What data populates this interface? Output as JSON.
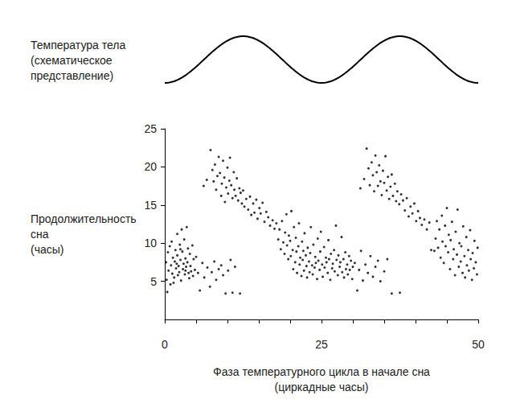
{
  "chart_data": {
    "type": "scatter",
    "annotation": "Температура тела\n(схематическое\nпредставление)",
    "x_label": "Фаза температурного цикла в начале сна\n(циркадные часы)",
    "y_label": "Продолжительность\nсна\n(часы)",
    "xlim": [
      0,
      50
    ],
    "xticks": [
      0,
      25,
      50
    ],
    "ylim": [
      0,
      25
    ],
    "yticks": [
      5,
      10,
      15,
      20,
      25
    ],
    "grid": false,
    "color": "#000000",
    "marker": "circle",
    "x": [
      0.2,
      0.3,
      0.5,
      0.6,
      0.8,
      0.9,
      1,
      1.1,
      1.2,
      1.3,
      1.5,
      1.6,
      1.7,
      1.8,
      2,
      2,
      2.1,
      2.2,
      2.3,
      2.4,
      2.5,
      2.6,
      2.7,
      2.8,
      2.9,
      3,
      3.1,
      3.2,
      3.3,
      3.4,
      3.5,
      3.6,
      3.7,
      3.8,
      3.9,
      4,
      4.1,
      4.2,
      4.4,
      4.5,
      4.6,
      4.8,
      5,
      1.4,
      0.4,
      2.5,
      1.9,
      3.3,
      5.3,
      5.6,
      6,
      6.3,
      6.8,
      7.2,
      7.5,
      7.9,
      8.2,
      8.6,
      9,
      9.3,
      9.7,
      10.1,
      10.5,
      10.8,
      11.2,
      12,
      6.2,
      6.7,
      7.3,
      7.6,
      7.8,
      8,
      8.2,
      8.4,
      8.6,
      8.8,
      9,
      9.1,
      9.3,
      9.5,
      9.6,
      9.8,
      10,
      10.1,
      10.3,
      10.4,
      10.6,
      10.8,
      11,
      11.1,
      11.3,
      11.5,
      11.7,
      11.9,
      12.1,
      12.3,
      12.5,
      12.7,
      13,
      13.3,
      13.6,
      13.8,
      14.1,
      14.3,
      14.6,
      14.8,
      15.1,
      15.3,
      15.6,
      15.9,
      16.2,
      16.5,
      16.8,
      17.2,
      17.5,
      17.8,
      18.1,
      18.3,
      18.5,
      18.7,
      18.9,
      19.1,
      19.2,
      19.4,
      19.5,
      19.7,
      19.8,
      20,
      20.1,
      20.2,
      20.4,
      20.5,
      20.6,
      20.8,
      20.9,
      21,
      21.1,
      21.3,
      21.4,
      21.5,
      21.6,
      21.8,
      21.9,
      22,
      22.1,
      22.2,
      22.3,
      22.5,
      22.6,
      22.7,
      22.8,
      23,
      23.1,
      23.2,
      23.3,
      23.5,
      23.6,
      23.7,
      23.9,
      24,
      24.1,
      24.3,
      24.4,
      24.5,
      24.7,
      24.8,
      24.9,
      25.1,
      25.2,
      25.4,
      25.5,
      25.7,
      25.8,
      26,
      26.1,
      26.2,
      26.4,
      26.5,
      26.7,
      26.8,
      27,
      27.1,
      27.3,
      27.4,
      27.6,
      27.7,
      27.9,
      28,
      28.2,
      28.3,
      28.5,
      28.6,
      28.8,
      28.9,
      29.1,
      29.2,
      29.4,
      29.5,
      29.7,
      29.9,
      30,
      30.3,
      30.7,
      31,
      31.3,
      31.6,
      32,
      32.4,
      32.8,
      33.2,
      33.6,
      34,
      34.4,
      35,
      35.5,
      36.2,
      37.5,
      31.2,
      31.8,
      32.2,
      32.5,
      32.7,
      33,
      33.2,
      33.4,
      33.6,
      33.8,
      34,
      34.2,
      34.4,
      34.6,
      34.8,
      35,
      35.2,
      35.4,
      35.6,
      35.8,
      36,
      36.2,
      36.4,
      36.7,
      36.9,
      37.1,
      37.4,
      37.7,
      38,
      38.3,
      38.6,
      38.9,
      39.2,
      39.5,
      39.8,
      40.1,
      40.4,
      40.7,
      41,
      41.4,
      41.8,
      42.2,
      42.5,
      43,
      43.2,
      43.4,
      43.6,
      43.8,
      44,
      44.2,
      44.3,
      44.5,
      44.7,
      44.8,
      45,
      45.2,
      45.3,
      45.5,
      45.6,
      45.8,
      46,
      46.1,
      46.3,
      46.4,
      46.6,
      46.7,
      46.9,
      47,
      47.2,
      47.3,
      47.5,
      47.6,
      47.8,
      47.9,
      48.1,
      48.2,
      48.4,
      48.5,
      48.7,
      48.8,
      49,
      49.1,
      49.3,
      49.4,
      49.6,
      49.8,
      49.9
    ],
    "values": [
      7.5,
      5.2,
      8.8,
      6.4,
      9.6,
      4.6,
      7.1,
      10.2,
      6,
      8.1,
      5.5,
      7.6,
      9.1,
      6.7,
      11.2,
      8.4,
      5.8,
      7,
      6.2,
      9.8,
      7.8,
      5.1,
      11.8,
      8.9,
      6.6,
      7.3,
      10.5,
      5.9,
      8,
      6.9,
      12.1,
      7.5,
      9.3,
      6.1,
      5.4,
      8.6,
      7,
      6.3,
      9.7,
      5.7,
      7.9,
      6.5,
      8.2,
      4.8,
      3.6,
      9.2,
      7.3,
      6.4,
      6.1,
      3.8,
      7.4,
      5.5,
      6.8,
      4.3,
      6.2,
      7.6,
      5.2,
      6.6,
      7.1,
      5.8,
      3.4,
      6.4,
      7.8,
      3.5,
      6.9,
      3.4,
      17.5,
      18.3,
      22.2,
      19.6,
      18.1,
      20.3,
      17,
      18.8,
      21.3,
      19.2,
      16.2,
      17.8,
      20.8,
      18.6,
      15.4,
      17.3,
      19.9,
      16.5,
      18.2,
      21.2,
      17.6,
      15.9,
      19.3,
      17,
      16.2,
      18.5,
      15.6,
      17.2,
      16.6,
      15.2,
      16.9,
      14.8,
      15.8,
      14.4,
      16.1,
      13.7,
      15.2,
      14,
      15.7,
      13.2,
      14.6,
      13.9,
      15.3,
      12.8,
      14.1,
      13.4,
      12.3,
      13,
      11.9,
      12.6,
      10.5,
      11.8,
      9.2,
      12.9,
      10.1,
      8.6,
      11.4,
      13.8,
      9.7,
      7.9,
      11,
      10.3,
      8.3,
      14.2,
      9.1,
      6.6,
      12.1,
      7.5,
      10.7,
      8.9,
      6.1,
      9.6,
      12.6,
      7.2,
      8.1,
      5.7,
      10.2,
      7.8,
      9,
      6.4,
      11.3,
      8.4,
      7,
      5.5,
      9.4,
      7.6,
      6.2,
      8.7,
      12.1,
      7.1,
      5.9,
      9.8,
      6.8,
      8.2,
      7.4,
      5.3,
      10.6,
      7.7,
      6.5,
      8.9,
      11.5,
      7.2,
      5.6,
      9.5,
      6.8,
      8.1,
      7.5,
      6.1,
      10.4,
      7.9,
      5.2,
      8.6,
      6.7,
      7.3,
      9.1,
      6.3,
      12.3,
      7.8,
      5.8,
      8.4,
      6.9,
      7.5,
      10.8,
      6.2,
      7.9,
      5.5,
      8.8,
      6.6,
      7.2,
      5.9,
      8.3,
      6.5,
      7.7,
      5.3,
      6.9,
      7.4,
      3.8,
      6.5,
      9,
      5.1,
      7.2,
      6.1,
      8.3,
      5.6,
      6.9,
      7.7,
      5,
      6.3,
      7.9,
      3.4,
      3.5,
      17.2,
      18.4,
      22.4,
      19.8,
      17.6,
      20.6,
      18.9,
      16.8,
      21.5,
      19.3,
      17.5,
      20.2,
      18.1,
      16.3,
      19.5,
      17.9,
      21.4,
      16.9,
      18.7,
      15.8,
      17.4,
      19,
      16.2,
      17.8,
      15.5,
      16.8,
      15.1,
      16.4,
      15.6,
      14.3,
      15.9,
      13.5,
      14.8,
      13.9,
      15.2,
      12.9,
      14.2,
      13.3,
      12.4,
      13.1,
      11.8,
      12.7,
      9.1,
      9,
      10.6,
      12.9,
      9.4,
      11.8,
      8.1,
      13.6,
      10.2,
      7.4,
      12.3,
      9.6,
      14.6,
      8.8,
      11.1,
      6.6,
      10.4,
      12.8,
      7.9,
      9.2,
      5.8,
      11.5,
      8.5,
      14.4,
      6.9,
      10,
      7.6,
      9.6,
      6.1,
      12.2,
      8.3,
      5.5,
      10.8,
      7.1,
      9.1,
      6.4,
      11.7,
      7.9,
      5.2,
      8.7,
      6.7,
      10.3,
      7.5,
      5.9,
      9.4
    ]
  }
}
